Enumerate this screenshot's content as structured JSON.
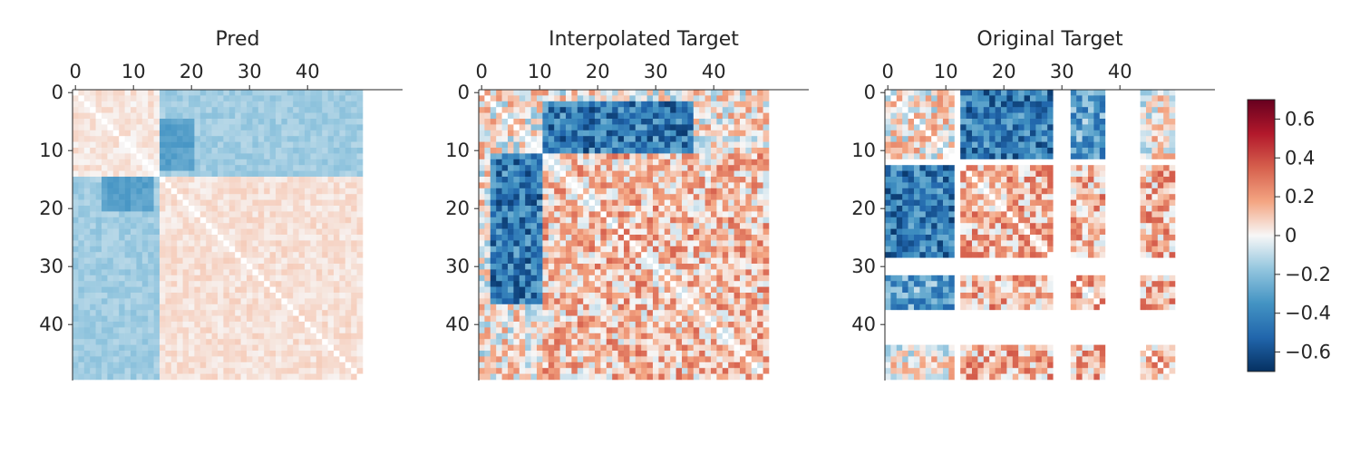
{
  "chart_data": {
    "type": "heatmap",
    "matrix_size": 50,
    "colormap": "RdBu_r",
    "color_range": [
      -0.7,
      0.7
    ],
    "grid": false,
    "panels": [
      {
        "title": "Pred",
        "x_ticks": [
          "0",
          "10",
          "20",
          "30",
          "40"
        ],
        "y_ticks": [
          "0",
          "10",
          "20",
          "30",
          "40"
        ],
        "tick_positions": [
          0,
          10,
          20,
          30,
          40
        ],
        "blocks": [
          {
            "rows": [
              0,
              14
            ],
            "cols": [
              15,
              49
            ],
            "value": -0.15
          },
          {
            "rows": [
              15,
              49
            ],
            "cols": [
              0,
              14
            ],
            "value": -0.15
          },
          {
            "rows": [
              5,
              13
            ],
            "cols": [
              15,
              20
            ],
            "value": -0.3
          },
          {
            "rows": [
              15,
              20
            ],
            "cols": [
              5,
              13
            ],
            "value": -0.3
          },
          {
            "rows": [
              15,
              49
            ],
            "cols": [
              15,
              49
            ],
            "value": 0.05
          },
          {
            "rows": [
              0,
              14
            ],
            "cols": [
              0,
              14
            ],
            "value": 0.04
          }
        ]
      },
      {
        "title": "Interpolated Target",
        "x_ticks": [
          "0",
          "10",
          "20",
          "30",
          "40"
        ],
        "y_ticks": [
          "0",
          "10",
          "20",
          "30",
          "40"
        ],
        "tick_positions": [
          0,
          10,
          20,
          30,
          40
        ],
        "blocks": [
          {
            "rows": [
              2,
              10
            ],
            "cols": [
              11,
              36
            ],
            "value": -0.45
          },
          {
            "rows": [
              11,
              36
            ],
            "cols": [
              2,
              10
            ],
            "value": -0.45
          },
          {
            "rows": [
              20,
              24
            ],
            "cols": [
              35,
              43
            ],
            "value": 0.45
          },
          {
            "rows": [
              35,
              43
            ],
            "cols": [
              20,
              24
            ],
            "value": 0.45
          },
          {
            "rows": [
              11,
              49
            ],
            "cols": [
              11,
              49
            ],
            "value": 0.12
          }
        ]
      },
      {
        "title": "Original Target",
        "x_ticks": [
          "0",
          "10",
          "20",
          "30",
          "40"
        ],
        "y_ticks": [
          "0",
          "10",
          "20",
          "30",
          "40"
        ],
        "tick_positions": [
          0,
          10,
          20,
          30,
          40
        ],
        "missing_indices": [
          12,
          29,
          30,
          31,
          38,
          39,
          40,
          41,
          42,
          43
        ],
        "blocks": [
          {
            "rows": [
              0,
              11
            ],
            "cols": [
              13,
              28
            ],
            "value": -0.45
          },
          {
            "rows": [
              13,
              28
            ],
            "cols": [
              0,
              11
            ],
            "value": -0.45
          },
          {
            "rows": [
              0,
              11
            ],
            "cols": [
              32,
              37
            ],
            "value": -0.3
          },
          {
            "rows": [
              32,
              37
            ],
            "cols": [
              0,
              11
            ],
            "value": -0.3
          },
          {
            "rows": [
              13,
              28
            ],
            "cols": [
              13,
              49
            ],
            "value": 0.15
          },
          {
            "rows": [
              32,
              49
            ],
            "cols": [
              13,
              49
            ],
            "value": 0.15
          }
        ]
      }
    ],
    "colorbar": {
      "ticks": [
        "0.6",
        "0.4",
        "0.2",
        "0",
        "−0.2",
        "−0.4",
        "−0.6"
      ],
      "tick_values": [
        0.6,
        0.4,
        0.2,
        0,
        -0.2,
        -0.4,
        -0.6
      ]
    }
  }
}
